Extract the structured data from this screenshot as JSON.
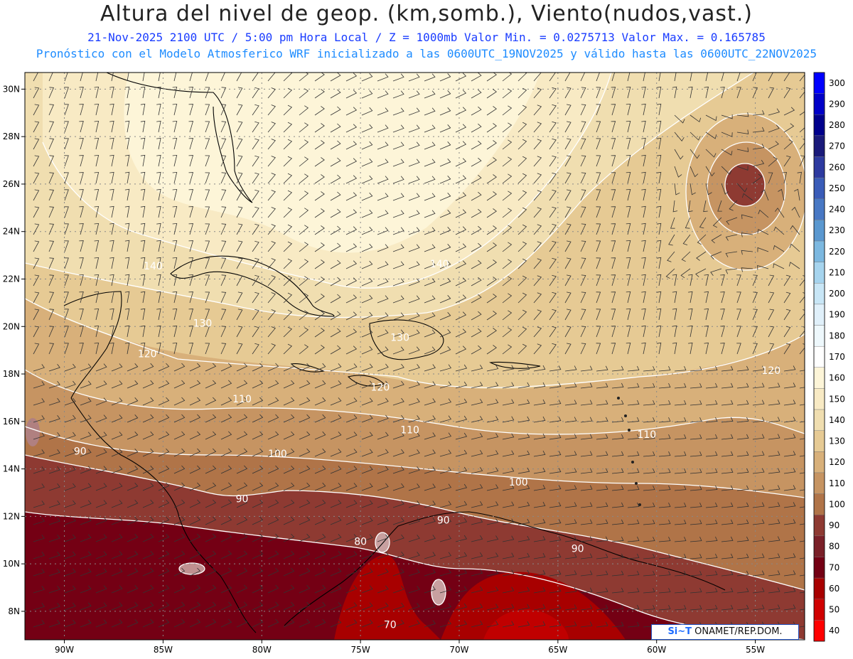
{
  "header": {
    "title": "Altura del nivel de geop. (km,somb.), Viento(nudos,vast.)",
    "subtitle_1": "21-Nov-2025  2100 UTC / 5:00 pm Hora Local / Z = 1000mb  Valor Min. = 0.0275713  Valor Max. = 0.165785",
    "subtitle_2": "Pronóstico con el Modelo Atmosferico WRF inicializado a las 0600UTC_19NOV2025 y válido hasta las  0600UTC_22NOV2025"
  },
  "map": {
    "lon_range": [
      -92,
      -52.5
    ],
    "lat_range": [
      6.8,
      30.7
    ],
    "lon_ticks": [
      "90W",
      "85W",
      "80W",
      "75W",
      "70W",
      "65W",
      "60W",
      "55W"
    ],
    "lon_tick_values": [
      -90,
      -85,
      -80,
      -75,
      -70,
      -65,
      -60,
      -55
    ],
    "lat_ticks": [
      "8N",
      "10N",
      "12N",
      "14N",
      "16N",
      "18N",
      "20N",
      "22N",
      "24N",
      "26N",
      "28N",
      "30N"
    ],
    "lat_tick_values": [
      8,
      10,
      12,
      14,
      16,
      18,
      20,
      22,
      24,
      26,
      28,
      30
    ],
    "contour_labels": [
      {
        "text": "140",
        "lon": -85.5,
        "lat": 22.4
      },
      {
        "text": "140",
        "lon": -71.0,
        "lat": 22.5
      },
      {
        "text": "130",
        "lon": -83.0,
        "lat": 20.0
      },
      {
        "text": "130",
        "lon": -73.0,
        "lat": 19.4
      },
      {
        "text": "120",
        "lon": -85.8,
        "lat": 18.7
      },
      {
        "text": "120",
        "lon": -74.0,
        "lat": 17.3
      },
      {
        "text": "120",
        "lon": -54.2,
        "lat": 18.0
      },
      {
        "text": "110",
        "lon": -81.0,
        "lat": 16.8
      },
      {
        "text": "110",
        "lon": -72.5,
        "lat": 15.5
      },
      {
        "text": "110",
        "lon": -60.5,
        "lat": 15.3
      },
      {
        "text": "100",
        "lon": -79.2,
        "lat": 14.5
      },
      {
        "text": "100",
        "lon": -67.0,
        "lat": 13.3
      },
      {
        "text": "90",
        "lon": -89.2,
        "lat": 14.6
      },
      {
        "text": "90",
        "lon": -81.0,
        "lat": 12.6
      },
      {
        "text": "90",
        "lon": -70.8,
        "lat": 11.7
      },
      {
        "text": "90",
        "lon": -64.0,
        "lat": 10.5
      },
      {
        "text": "80",
        "lon": -75.0,
        "lat": 10.8
      },
      {
        "text": "70",
        "lon": -73.5,
        "lat": 7.3
      }
    ]
  },
  "colorbar": {
    "levels": [
      "300",
      "290",
      "280",
      "270",
      "260",
      "250",
      "240",
      "230",
      "220",
      "210",
      "200",
      "190",
      "180",
      "170",
      "160",
      "150",
      "140",
      "130",
      "120",
      "110",
      "100",
      "90",
      "80",
      "70",
      "60",
      "50",
      "40"
    ],
    "colors": [
      "#0000ff",
      "#0000c8",
      "#00008c",
      "#1a1a7a",
      "#2d3aa0",
      "#3a5cb8",
      "#4878c4",
      "#5a98d0",
      "#7cb8e0",
      "#a6d4ee",
      "#c8e6f6",
      "#e0f0fa",
      "#eef8fc",
      "#ffffff",
      "#fdf5d8",
      "#f8eac4",
      "#f0deb0",
      "#e6ca94",
      "#d8b07a",
      "#c69462",
      "#b07448",
      "#8e3a32",
      "#7a2028",
      "#740014",
      "#a80000",
      "#d00000",
      "#ff0000"
    ]
  },
  "credit": {
    "logo": "Si~T",
    "text": " ONAMET/REP.DOM."
  }
}
